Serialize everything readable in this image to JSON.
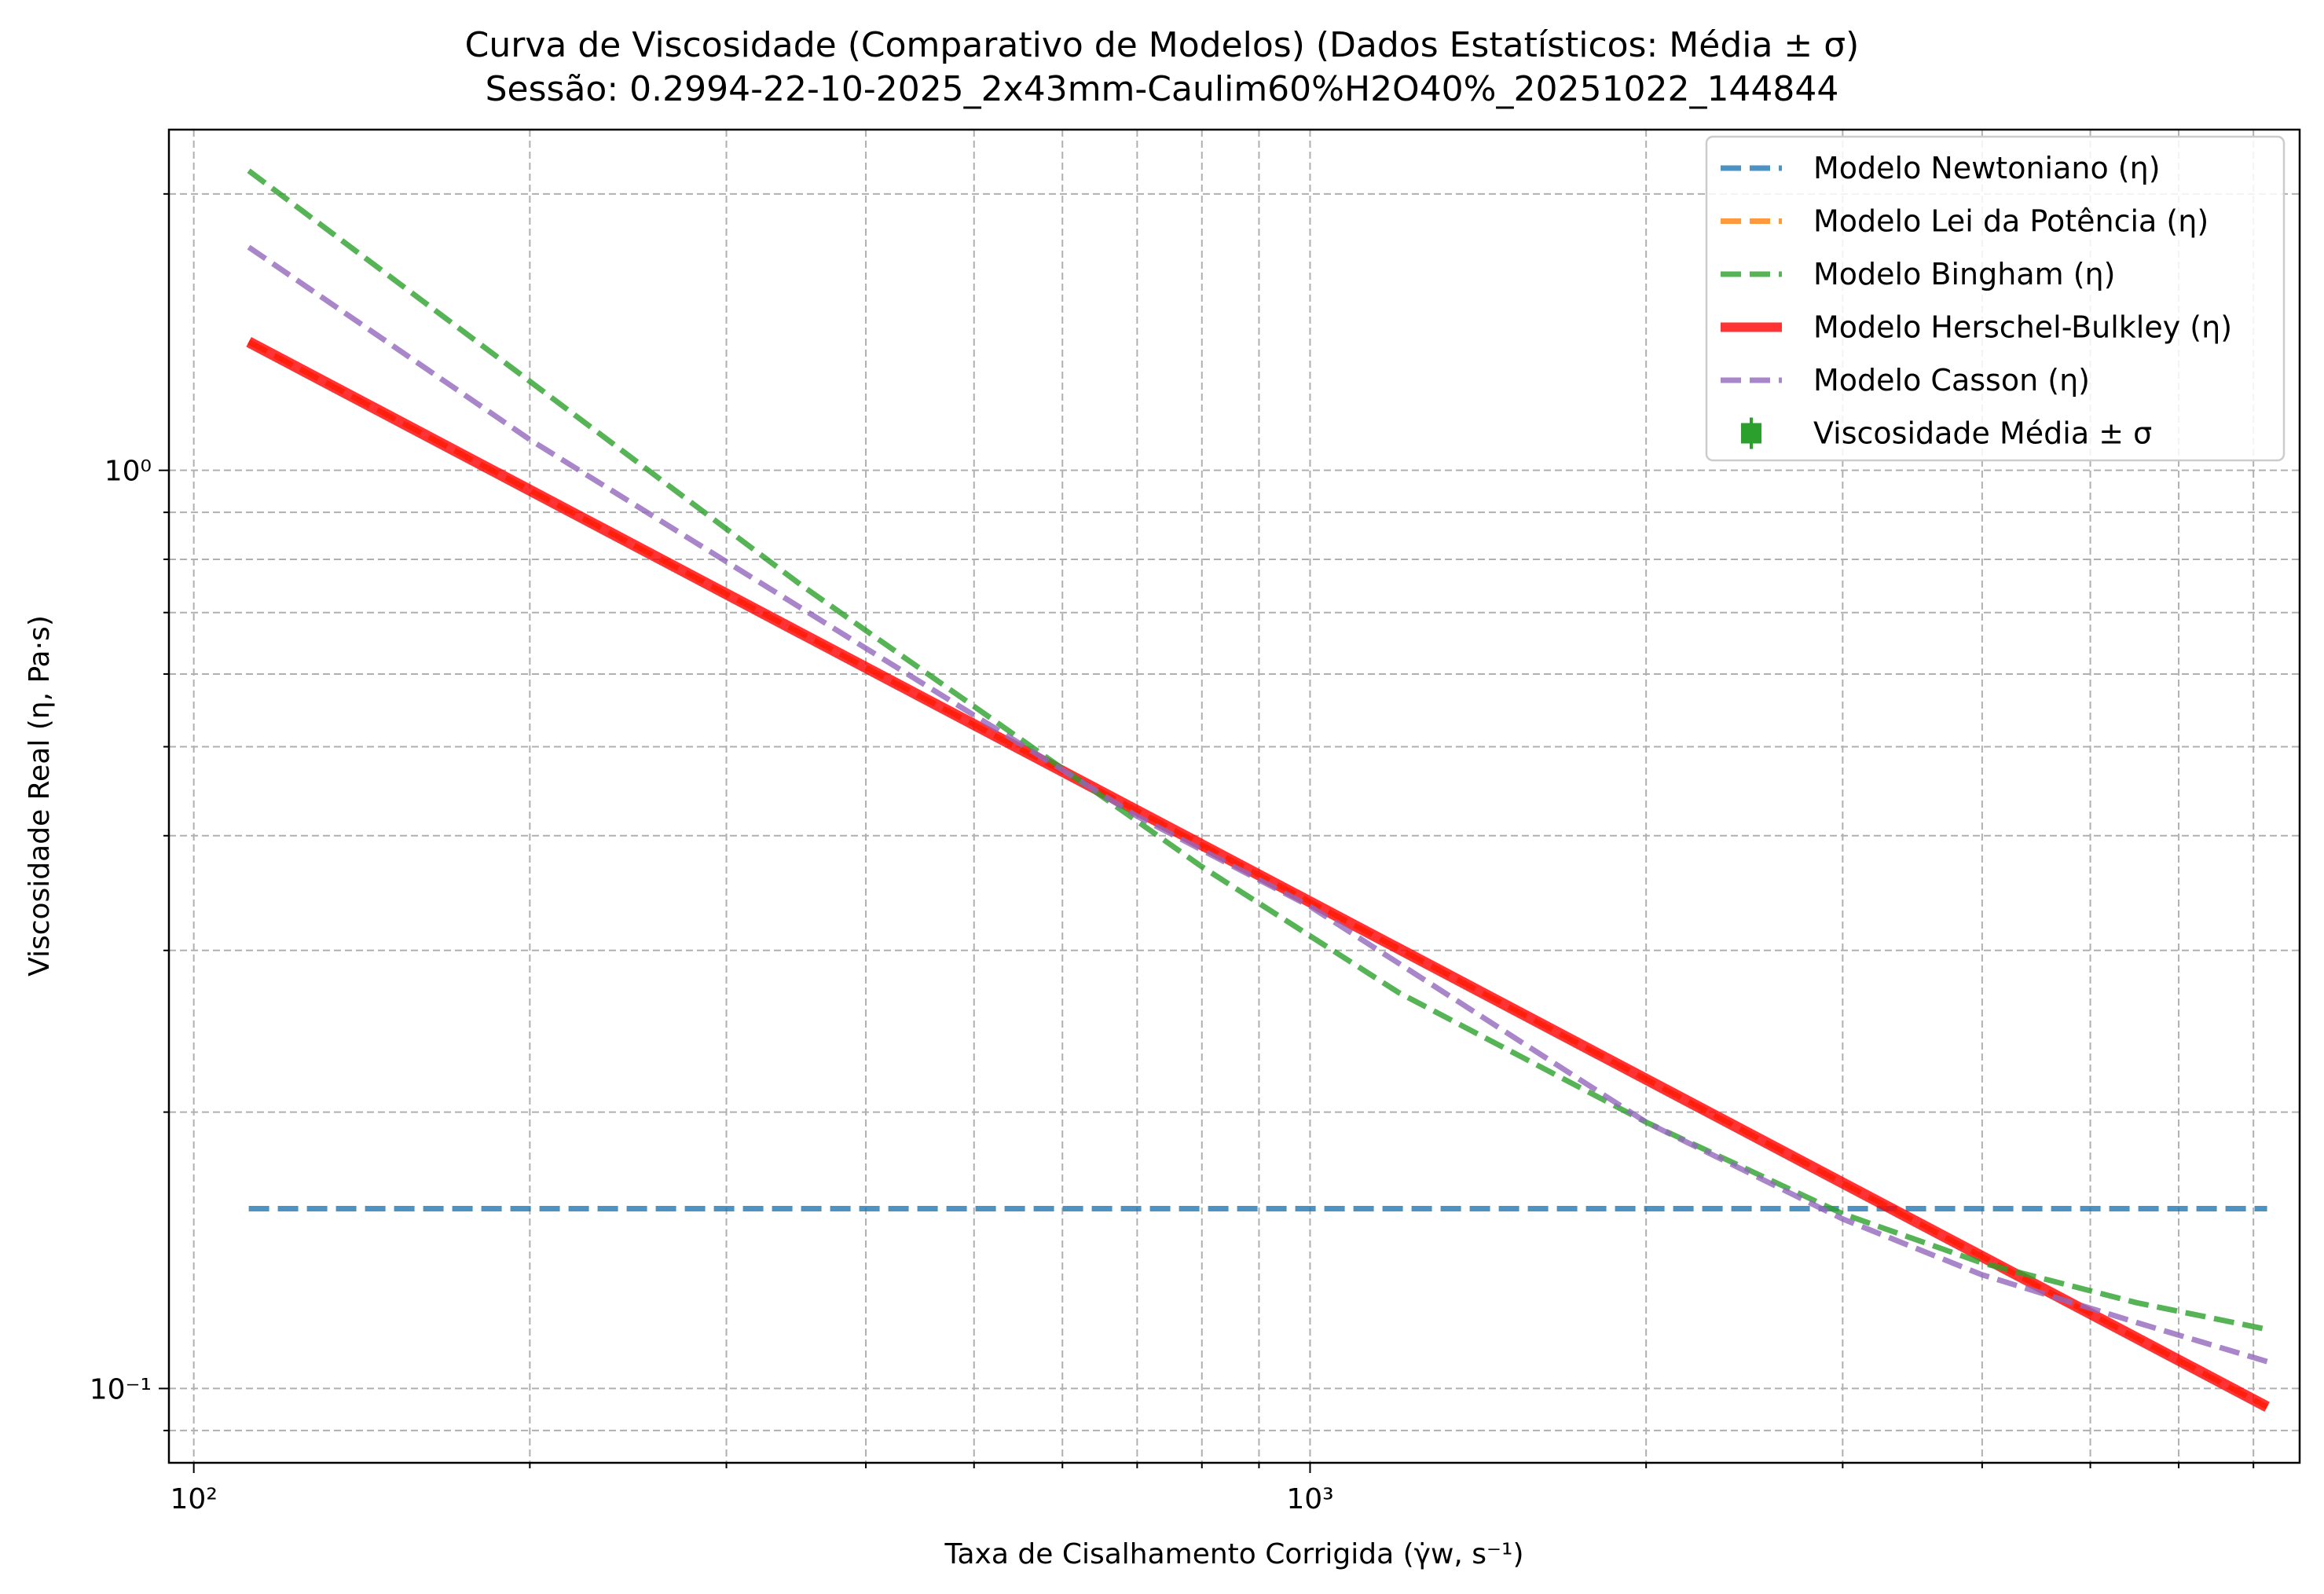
{
  "chart_data": {
    "type": "line",
    "title": "Curva de Viscosidade (Comparativo de Modelos) (Dados Estatísticos: Média ± σ)",
    "subtitle": "Sessão: 0.2994-22-10-2025_2x43mm-Caulim60%H2O40%_20251022_144844",
    "xlabel": "Taxa de Cisalhamento Corrigida (γ̇w, s⁻¹)",
    "ylabel": "Viscosidade Real (η, Pa·s)",
    "xscale": "log",
    "yscale": "log",
    "xlim": [
      95,
      7700
    ],
    "ylim": [
      0.083,
      2.35
    ],
    "x_ticks": [
      {
        "value": 100,
        "label": "10²"
      },
      {
        "value": 1000,
        "label": "10³"
      }
    ],
    "y_ticks": [
      {
        "value": 0.1,
        "label": "10⁻¹"
      },
      {
        "value": 1.0,
        "label": "10⁰"
      }
    ],
    "grid": true,
    "legend_position": "top-right",
    "series": [
      {
        "name": "Modelo Newtoniano (η)",
        "color": "#1f77b4",
        "style": "dashed",
        "x": [
          112,
          7200
        ],
        "y": [
          0.157,
          0.157
        ]
      },
      {
        "name": "Modelo Lei da Potência (η)",
        "color": "#ff7f0e",
        "style": "dashed",
        "x": [
          112,
          7200
        ],
        "y": [
          1.38,
          0.0955
        ]
      },
      {
        "name": "Modelo Bingham (η)",
        "color": "#2ca02c",
        "style": "dashed",
        "x": [
          112,
          200,
          350,
          550,
          800,
          1200,
          2000,
          3000,
          4000,
          5500,
          7200
        ],
        "y": [
          2.12,
          1.25,
          0.75,
          0.51,
          0.37,
          0.27,
          0.195,
          0.155,
          0.137,
          0.124,
          0.116
        ]
      },
      {
        "name": "Modelo Herschel-Bulkley (η)",
        "color": "#ff0000",
        "style": "solid",
        "x": [
          112,
          7200
        ],
        "y": [
          1.38,
          0.0955
        ]
      },
      {
        "name": "Modelo Casson (η)",
        "color": "#9467bd",
        "style": "dashed",
        "x": [
          112,
          200,
          400,
          700,
          1000,
          2000,
          3000,
          4000,
          5500,
          7200
        ],
        "y": [
          1.75,
          1.08,
          0.64,
          0.42,
          0.335,
          0.195,
          0.153,
          0.133,
          0.118,
          0.107
        ]
      },
      {
        "name": "Viscosidade Média ± σ",
        "color": "#2ca02c",
        "style": "errorbar",
        "x": [],
        "y": []
      }
    ]
  }
}
